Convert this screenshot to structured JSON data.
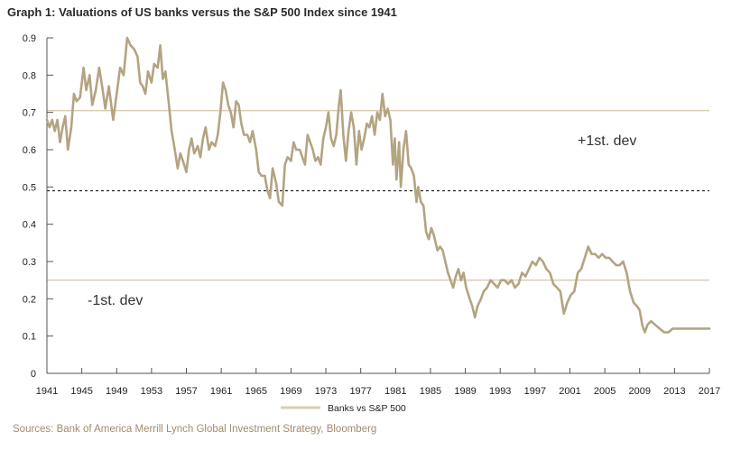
{
  "title": "Graph 1: Valuations of US banks versus the S&P 500 Index since 1941",
  "source": "Sources: Bank of America Merrill Lynch Global Investment Strategy, Bloomberg",
  "colors": {
    "series": "#b3a482",
    "ref_band": "#d9ceb2",
    "mean": "#222222",
    "axis": "#555555"
  },
  "chart_data": {
    "type": "line",
    "x_ticks": [
      "1941",
      "1945",
      "1949",
      "1953",
      "1957",
      "1961",
      "1965",
      "1969",
      "1973",
      "1977",
      "1981",
      "1985",
      "1989",
      "1993",
      "1997",
      "2001",
      "2005",
      "2009",
      "2013",
      "2017"
    ],
    "y_ticks": [
      "0",
      "0.1",
      "0.2",
      "0.3",
      "0.4",
      "0.5",
      "0.6",
      "0.7",
      "0.8",
      "0.9"
    ],
    "xlim": [
      1941,
      2017
    ],
    "ylim": [
      0,
      0.9
    ],
    "legend": "Banks vs S&P 500",
    "annotations": {
      "upper": "+1st. dev",
      "lower": "-1st. dev"
    },
    "reference_lines": {
      "plus_one_sd": 0.705,
      "mean": 0.49,
      "minus_one_sd": 0.25
    },
    "series": [
      {
        "name": "Banks vs S&P 500",
        "points": [
          [
            1941.0,
            0.68
          ],
          [
            1941.3,
            0.66
          ],
          [
            1941.6,
            0.68
          ],
          [
            1941.9,
            0.65
          ],
          [
            1942.2,
            0.68
          ],
          [
            1942.5,
            0.62
          ],
          [
            1942.8,
            0.66
          ],
          [
            1943.1,
            0.69
          ],
          [
            1943.4,
            0.6
          ],
          [
            1943.8,
            0.66
          ],
          [
            1944.1,
            0.75
          ],
          [
            1944.4,
            0.73
          ],
          [
            1944.8,
            0.74
          ],
          [
            1945.2,
            0.82
          ],
          [
            1945.5,
            0.76
          ],
          [
            1945.9,
            0.8
          ],
          [
            1946.2,
            0.72
          ],
          [
            1946.6,
            0.76
          ],
          [
            1947.0,
            0.82
          ],
          [
            1947.4,
            0.76
          ],
          [
            1947.7,
            0.71
          ],
          [
            1948.1,
            0.77
          ],
          [
            1948.6,
            0.68
          ],
          [
            1949.0,
            0.75
          ],
          [
            1949.4,
            0.82
          ],
          [
            1949.8,
            0.8
          ],
          [
            1950.2,
            0.9
          ],
          [
            1950.6,
            0.88
          ],
          [
            1951.0,
            0.87
          ],
          [
            1951.4,
            0.85
          ],
          [
            1951.7,
            0.78
          ],
          [
            1952.0,
            0.77
          ],
          [
            1952.3,
            0.75
          ],
          [
            1952.6,
            0.81
          ],
          [
            1953.0,
            0.78
          ],
          [
            1953.3,
            0.83
          ],
          [
            1953.7,
            0.82
          ],
          [
            1954.0,
            0.88
          ],
          [
            1954.3,
            0.79
          ],
          [
            1954.6,
            0.81
          ],
          [
            1955.0,
            0.72
          ],
          [
            1955.3,
            0.65
          ],
          [
            1955.6,
            0.61
          ],
          [
            1956.0,
            0.55
          ],
          [
            1956.3,
            0.59
          ],
          [
            1956.6,
            0.57
          ],
          [
            1957.0,
            0.54
          ],
          [
            1957.3,
            0.6
          ],
          [
            1957.6,
            0.63
          ],
          [
            1957.9,
            0.59
          ],
          [
            1958.3,
            0.61
          ],
          [
            1958.6,
            0.58
          ],
          [
            1958.9,
            0.63
          ],
          [
            1959.2,
            0.66
          ],
          [
            1959.6,
            0.6
          ],
          [
            1959.9,
            0.62
          ],
          [
            1960.3,
            0.61
          ],
          [
            1960.6,
            0.64
          ],
          [
            1960.9,
            0.7
          ],
          [
            1961.2,
            0.78
          ],
          [
            1961.5,
            0.76
          ],
          [
            1961.8,
            0.72
          ],
          [
            1962.1,
            0.7
          ],
          [
            1962.4,
            0.66
          ],
          [
            1962.7,
            0.73
          ],
          [
            1963.0,
            0.72
          ],
          [
            1963.3,
            0.67
          ],
          [
            1963.6,
            0.64
          ],
          [
            1964.0,
            0.64
          ],
          [
            1964.3,
            0.62
          ],
          [
            1964.6,
            0.65
          ],
          [
            1965.0,
            0.6
          ],
          [
            1965.3,
            0.54
          ],
          [
            1965.6,
            0.53
          ],
          [
            1966.0,
            0.53
          ],
          [
            1966.3,
            0.49
          ],
          [
            1966.6,
            0.47
          ],
          [
            1966.9,
            0.55
          ],
          [
            1967.3,
            0.51
          ],
          [
            1967.6,
            0.46
          ],
          [
            1968.0,
            0.45
          ],
          [
            1968.3,
            0.56
          ],
          [
            1968.6,
            0.58
          ],
          [
            1969.0,
            0.57
          ],
          [
            1969.3,
            0.62
          ],
          [
            1969.6,
            0.6
          ],
          [
            1970.0,
            0.6
          ],
          [
            1970.3,
            0.58
          ],
          [
            1970.6,
            0.56
          ],
          [
            1970.9,
            0.64
          ],
          [
            1971.2,
            0.62
          ],
          [
            1971.5,
            0.6
          ],
          [
            1971.8,
            0.57
          ],
          [
            1972.1,
            0.58
          ],
          [
            1972.4,
            0.56
          ],
          [
            1972.7,
            0.63
          ],
          [
            1973.0,
            0.66
          ],
          [
            1973.3,
            0.7
          ],
          [
            1973.6,
            0.63
          ],
          [
            1973.9,
            0.61
          ],
          [
            1974.2,
            0.64
          ],
          [
            1974.5,
            0.72
          ],
          [
            1974.7,
            0.76
          ],
          [
            1975.0,
            0.64
          ],
          [
            1975.3,
            0.57
          ],
          [
            1975.6,
            0.65
          ],
          [
            1975.9,
            0.7
          ],
          [
            1976.2,
            0.66
          ],
          [
            1976.5,
            0.56
          ],
          [
            1976.8,
            0.65
          ],
          [
            1977.1,
            0.6
          ],
          [
            1977.4,
            0.63
          ],
          [
            1977.7,
            0.67
          ],
          [
            1978.0,
            0.66
          ],
          [
            1978.3,
            0.69
          ],
          [
            1978.6,
            0.64
          ],
          [
            1978.9,
            0.7
          ],
          [
            1979.2,
            0.68
          ],
          [
            1979.5,
            0.75
          ],
          [
            1979.8,
            0.69
          ],
          [
            1980.1,
            0.71
          ],
          [
            1980.4,
            0.68
          ],
          [
            1980.7,
            0.56
          ],
          [
            1980.9,
            0.63
          ],
          [
            1981.1,
            0.52
          ],
          [
            1981.4,
            0.62
          ],
          [
            1981.6,
            0.5
          ],
          [
            1981.9,
            0.6
          ],
          [
            1982.2,
            0.65
          ],
          [
            1982.5,
            0.56
          ],
          [
            1982.8,
            0.55
          ],
          [
            1983.1,
            0.53
          ],
          [
            1983.4,
            0.46
          ],
          [
            1983.6,
            0.5
          ],
          [
            1983.9,
            0.46
          ],
          [
            1984.2,
            0.45
          ],
          [
            1984.5,
            0.38
          ],
          [
            1984.8,
            0.36
          ],
          [
            1985.1,
            0.39
          ],
          [
            1985.4,
            0.37
          ],
          [
            1985.8,
            0.33
          ],
          [
            1986.1,
            0.34
          ],
          [
            1986.4,
            0.33
          ],
          [
            1986.7,
            0.3
          ],
          [
            1987.0,
            0.27
          ],
          [
            1987.3,
            0.25
          ],
          [
            1987.6,
            0.23
          ],
          [
            1987.9,
            0.26
          ],
          [
            1988.2,
            0.28
          ],
          [
            1988.5,
            0.25
          ],
          [
            1988.8,
            0.27
          ],
          [
            1989.1,
            0.23
          ],
          [
            1989.5,
            0.2
          ],
          [
            1989.8,
            0.18
          ],
          [
            1990.1,
            0.15
          ],
          [
            1990.4,
            0.18
          ],
          [
            1990.8,
            0.2
          ],
          [
            1991.1,
            0.22
          ],
          [
            1991.5,
            0.23
          ],
          [
            1991.9,
            0.25
          ],
          [
            1992.3,
            0.24
          ],
          [
            1992.7,
            0.23
          ],
          [
            1993.1,
            0.25
          ],
          [
            1993.5,
            0.25
          ],
          [
            1993.9,
            0.24
          ],
          [
            1994.3,
            0.25
          ],
          [
            1994.7,
            0.23
          ],
          [
            1995.1,
            0.24
          ],
          [
            1995.5,
            0.27
          ],
          [
            1995.9,
            0.26
          ],
          [
            1996.3,
            0.28
          ],
          [
            1996.7,
            0.3
          ],
          [
            1997.1,
            0.29
          ],
          [
            1997.5,
            0.31
          ],
          [
            1997.9,
            0.3
          ],
          [
            1998.3,
            0.28
          ],
          [
            1998.7,
            0.27
          ],
          [
            1999.1,
            0.24
          ],
          [
            1999.5,
            0.23
          ],
          [
            1999.9,
            0.22
          ],
          [
            2000.3,
            0.16
          ],
          [
            2000.7,
            0.19
          ],
          [
            2001.1,
            0.21
          ],
          [
            2001.5,
            0.22
          ],
          [
            2001.9,
            0.27
          ],
          [
            2002.3,
            0.28
          ],
          [
            2002.7,
            0.31
          ],
          [
            2003.1,
            0.34
          ],
          [
            2003.5,
            0.32
          ],
          [
            2003.9,
            0.32
          ],
          [
            2004.3,
            0.31
          ],
          [
            2004.7,
            0.32
          ],
          [
            2005.1,
            0.31
          ],
          [
            2005.5,
            0.31
          ],
          [
            2005.9,
            0.3
          ],
          [
            2006.3,
            0.29
          ],
          [
            2006.7,
            0.29
          ],
          [
            2007.1,
            0.3
          ],
          [
            2007.5,
            0.27
          ],
          [
            2007.9,
            0.22
          ],
          [
            2008.3,
            0.19
          ],
          [
            2008.7,
            0.18
          ],
          [
            2009.0,
            0.17
          ],
          [
            2009.3,
            0.13
          ],
          [
            2009.6,
            0.11
          ],
          [
            2009.9,
            0.13
          ],
          [
            2010.3,
            0.14
          ],
          [
            2010.8,
            0.13
          ],
          [
            2011.3,
            0.12
          ],
          [
            2011.8,
            0.11
          ],
          [
            2012.3,
            0.11
          ],
          [
            2012.8,
            0.12
          ],
          [
            2013.3,
            0.12
          ],
          [
            2013.8,
            0.12
          ],
          [
            2014.3,
            0.12
          ],
          [
            2014.8,
            0.12
          ],
          [
            2015.3,
            0.12
          ],
          [
            2015.8,
            0.12
          ],
          [
            2016.3,
            0.12
          ],
          [
            2016.8,
            0.12
          ],
          [
            2017.0,
            0.12
          ]
        ]
      }
    ]
  }
}
